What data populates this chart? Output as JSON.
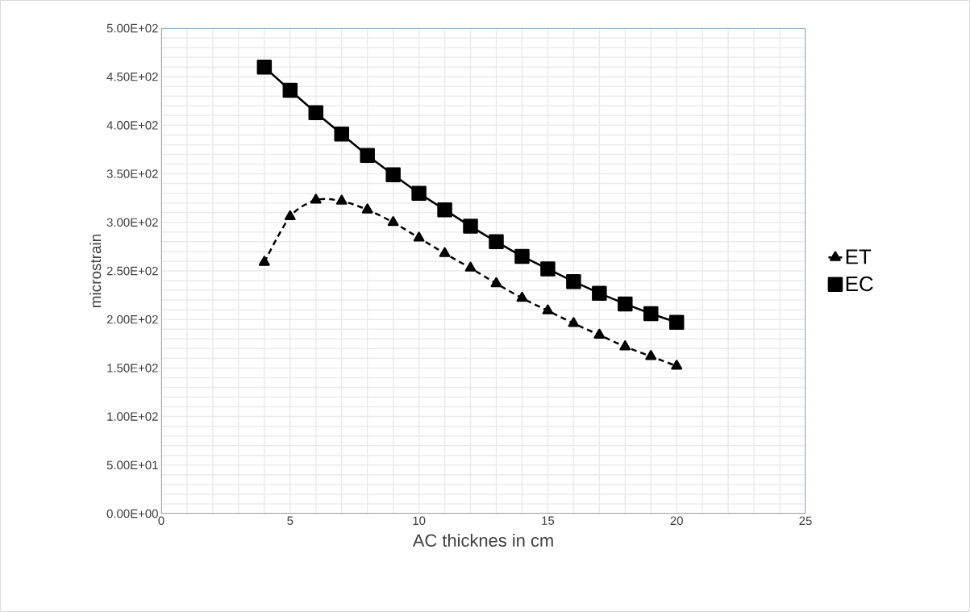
{
  "chart_data": {
    "type": "line",
    "xlabel": "AC thicknes in cm",
    "ylabel": "microstrain",
    "x": [
      4,
      5,
      6,
      7,
      8,
      9,
      10,
      11,
      12,
      13,
      14,
      15,
      16,
      17,
      18,
      19,
      20
    ],
    "series": [
      {
        "name": "ET",
        "color": "#000000",
        "marker": "triangle",
        "line_style": "dashed",
        "values": [
          259,
          306,
          323,
          322,
          313,
          300,
          284,
          268,
          253,
          237,
          222,
          209,
          196,
          184,
          172,
          162,
          152
        ]
      },
      {
        "name": "EC",
        "color": "#000000",
        "marker": "square",
        "line_style": "solid",
        "values": [
          460,
          436,
          413,
          391,
          369,
          349,
          330,
          313,
          296,
          280,
          265,
          252,
          239,
          227,
          216,
          206,
          197
        ]
      }
    ],
    "xlim": [
      0,
      25
    ],
    "xticks": [
      0,
      5,
      10,
      15,
      20,
      25
    ],
    "ylim": [
      0,
      500
    ],
    "yticks": [
      {
        "value": 0,
        "label": "0.00E+00"
      },
      {
        "value": 50,
        "label": "5.00E+01"
      },
      {
        "value": 100,
        "label": "1.00E+02"
      },
      {
        "value": 150,
        "label": "1.50E+02"
      },
      {
        "value": 200,
        "label": "2.00E+02"
      },
      {
        "value": 250,
        "label": "2.50E+02"
      },
      {
        "value": 300,
        "label": "3.00E+02"
      },
      {
        "value": 350,
        "label": "3.50E+02"
      },
      {
        "value": 400,
        "label": "4.00E+02"
      },
      {
        "value": 450,
        "label": "4.50E+02"
      },
      {
        "value": 500,
        "label": "5.00E+02"
      }
    ],
    "grid": true,
    "legend": "right"
  }
}
